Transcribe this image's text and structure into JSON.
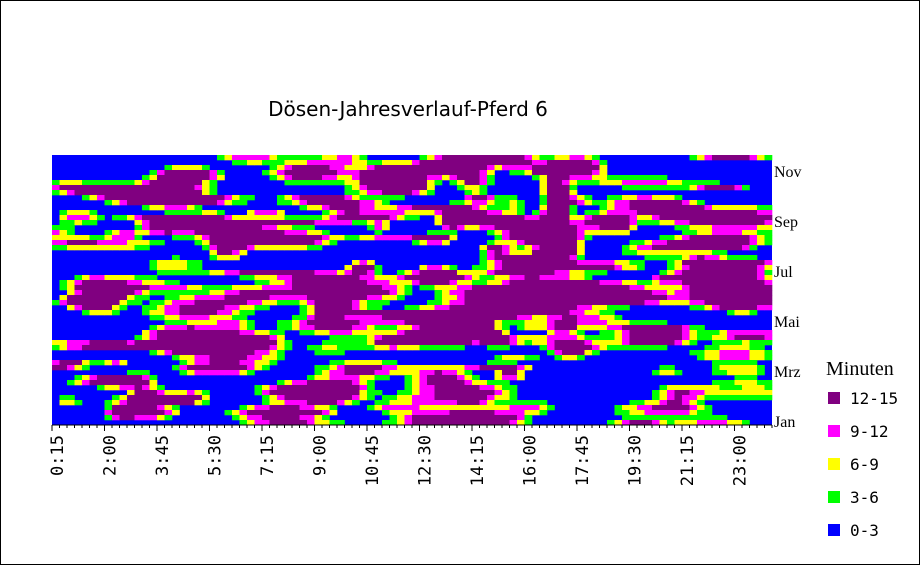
{
  "chart_data": {
    "type": "heatmap",
    "title": "Dösen-Jahresverlauf-Pferd 6",
    "x_tick_labels": [
      "0:15",
      "2:00",
      "3:45",
      "5:30",
      "7:15",
      "9:00",
      "10:45",
      "12:30",
      "14:15",
      "16:00",
      "17:45",
      "19:30",
      "21:15",
      "23:00"
    ],
    "y_tick_labels": [
      "Nov",
      "Sep",
      "Jul",
      "Mai",
      "Mrz",
      "Jan"
    ],
    "legend": {
      "title": "Minuten",
      "entries": [
        {
          "label": "12-15",
          "color": "#800080"
        },
        {
          "label": "9-12",
          "color": "#ff00ff"
        },
        {
          "label": "6-9",
          "color": "#ffff00"
        },
        {
          "label": "3-6",
          "color": "#00ff00"
        },
        {
          "label": "0-3",
          "color": "#0000ff"
        }
      ]
    }
  }
}
